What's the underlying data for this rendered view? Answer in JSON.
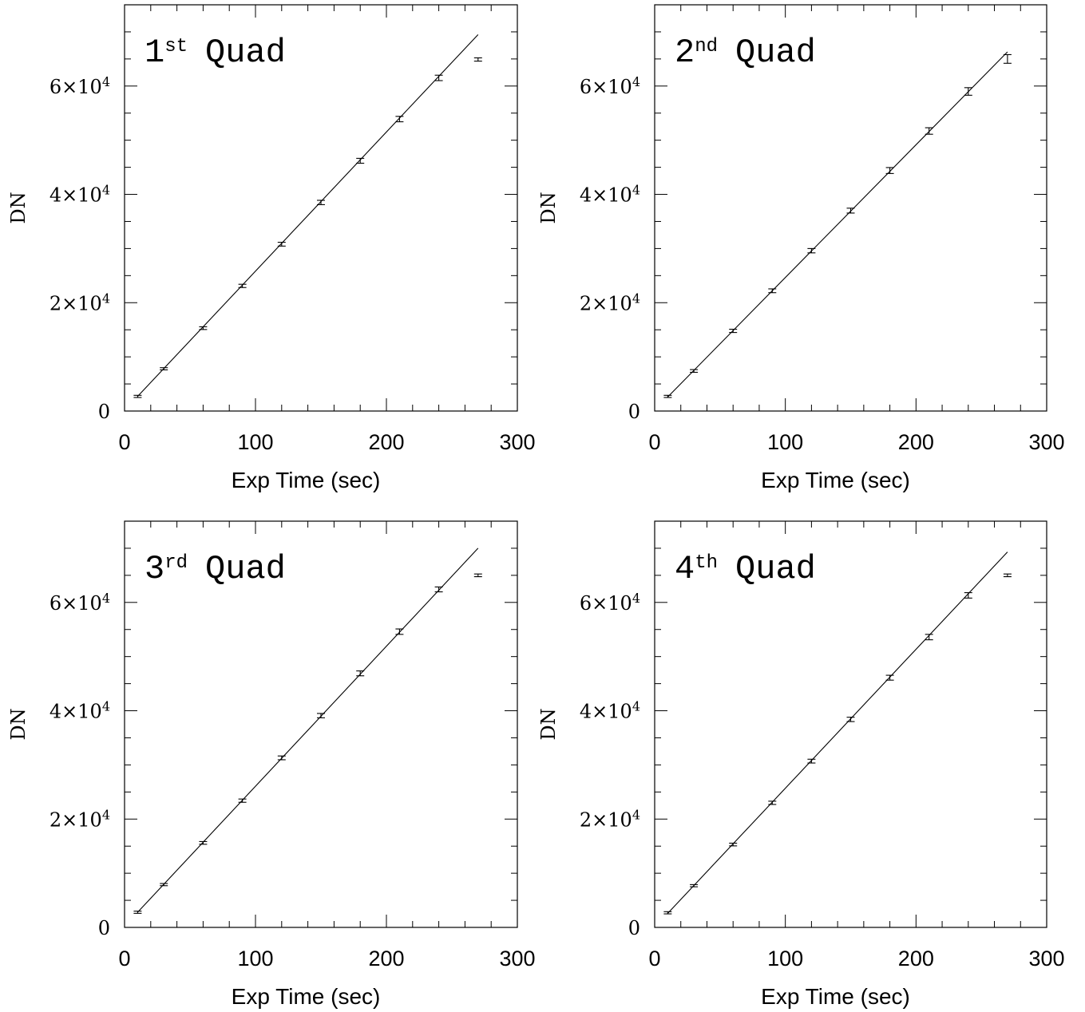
{
  "chart_data": [
    {
      "type": "scatter",
      "title": "1st Quad",
      "title_main": "1",
      "title_sup": "st",
      "title_rest": "Quad",
      "xlabel": "Exp Time (sec)",
      "ylabel": "DN",
      "xlim": [
        0,
        300
      ],
      "ylim": [
        0,
        75000
      ],
      "xticks": [
        0,
        100,
        200,
        300
      ],
      "xtick_labels": [
        "0",
        "100",
        "200",
        "300"
      ],
      "yticks": [
        0,
        20000,
        40000,
        60000
      ],
      "ytick_labels": [
        {
          "mant": "0",
          "exp": ""
        },
        {
          "mant": "2×10",
          "exp": "4"
        },
        {
          "mant": "4×10",
          "exp": "4"
        },
        {
          "mant": "6×10",
          "exp": "4"
        }
      ],
      "grid": false,
      "series": [
        {
          "x": [
            10,
            30,
            60,
            90,
            120,
            150,
            180,
            210,
            240,
            270
          ],
          "y": [
            2700,
            7800,
            15300,
            23100,
            30800,
            38500,
            46200,
            53900,
            61500,
            64900
          ],
          "yerr": [
            200,
            200,
            250,
            300,
            350,
            400,
            450,
            500,
            500,
            300
          ]
        }
      ],
      "fit_line": {
        "x": [
          10,
          270
        ],
        "y": [
          2700,
          69500
        ]
      }
    },
    {
      "type": "scatter",
      "title": "2nd Quad",
      "title_main": "2",
      "title_sup": "nd",
      "title_rest": "Quad",
      "xlabel": "Exp Time (sec)",
      "ylabel": "DN",
      "xlim": [
        0,
        300
      ],
      "ylim": [
        0,
        75000
      ],
      "xticks": [
        0,
        100,
        200,
        300
      ],
      "xtick_labels": [
        "0",
        "100",
        "200",
        "300"
      ],
      "yticks": [
        0,
        20000,
        40000,
        60000
      ],
      "ytick_labels": [
        {
          "mant": "0",
          "exp": ""
        },
        {
          "mant": "2×10",
          "exp": "4"
        },
        {
          "mant": "4×10",
          "exp": "4"
        },
        {
          "mant": "6×10",
          "exp": "4"
        }
      ],
      "grid": false,
      "series": [
        {
          "x": [
            10,
            30,
            60,
            90,
            120,
            150,
            180,
            210,
            240,
            270
          ],
          "y": [
            2700,
            7400,
            14800,
            22200,
            29600,
            37000,
            44400,
            51700,
            59000,
            65000
          ],
          "yerr": [
            200,
            250,
            300,
            350,
            400,
            450,
            550,
            600,
            700,
            800
          ]
        }
      ],
      "fit_line": {
        "x": [
          10,
          270
        ],
        "y": [
          2600,
          66300
        ]
      }
    },
    {
      "type": "scatter",
      "title": "3rd Quad",
      "title_main": "3",
      "title_sup": "rd",
      "title_rest": "Quad",
      "xlabel": "Exp Time (sec)",
      "ylabel": "DN",
      "xlim": [
        0,
        300
      ],
      "ylim": [
        0,
        75000
      ],
      "xticks": [
        0,
        100,
        200,
        300
      ],
      "xtick_labels": [
        "0",
        "100",
        "200",
        "300"
      ],
      "yticks": [
        0,
        20000,
        40000,
        60000
      ],
      "ytick_labels": [
        {
          "mant": "0",
          "exp": ""
        },
        {
          "mant": "2×10",
          "exp": "4"
        },
        {
          "mant": "4×10",
          "exp": "4"
        },
        {
          "mant": "6×10",
          "exp": "4"
        }
      ],
      "grid": false,
      "series": [
        {
          "x": [
            10,
            30,
            60,
            90,
            120,
            150,
            180,
            210,
            240,
            270
          ],
          "y": [
            2800,
            7900,
            15600,
            23400,
            31300,
            39100,
            46900,
            54600,
            62400,
            65000
          ],
          "yerr": [
            200,
            200,
            250,
            300,
            350,
            400,
            450,
            500,
            450,
            250
          ]
        }
      ],
      "fit_line": {
        "x": [
          10,
          270
        ],
        "y": [
          2800,
          70000
        ]
      }
    },
    {
      "type": "scatter",
      "title": "4th Quad",
      "title_main": "4",
      "title_sup": "th",
      "title_rest": "Quad",
      "xlabel": "Exp Time (sec)",
      "ylabel": "DN",
      "xlim": [
        0,
        300
      ],
      "ylim": [
        0,
        75000
      ],
      "xticks": [
        0,
        100,
        200,
        300
      ],
      "xtick_labels": [
        "0",
        "100",
        "200",
        "300"
      ],
      "yticks": [
        0,
        20000,
        40000,
        60000
      ],
      "ytick_labels": [
        {
          "mant": "0",
          "exp": ""
        },
        {
          "mant": "2×10",
          "exp": "4"
        },
        {
          "mant": "4×10",
          "exp": "4"
        },
        {
          "mant": "6×10",
          "exp": "4"
        }
      ],
      "grid": false,
      "series": [
        {
          "x": [
            10,
            30,
            60,
            90,
            120,
            150,
            180,
            210,
            240,
            270
          ],
          "y": [
            2700,
            7700,
            15300,
            23000,
            30700,
            38400,
            46100,
            53600,
            61300,
            65000
          ],
          "yerr": [
            200,
            200,
            250,
            300,
            350,
            400,
            450,
            500,
            500,
            250
          ]
        }
      ],
      "fit_line": {
        "x": [
          10,
          270
        ],
        "y": [
          2600,
          69300
        ]
      }
    }
  ]
}
